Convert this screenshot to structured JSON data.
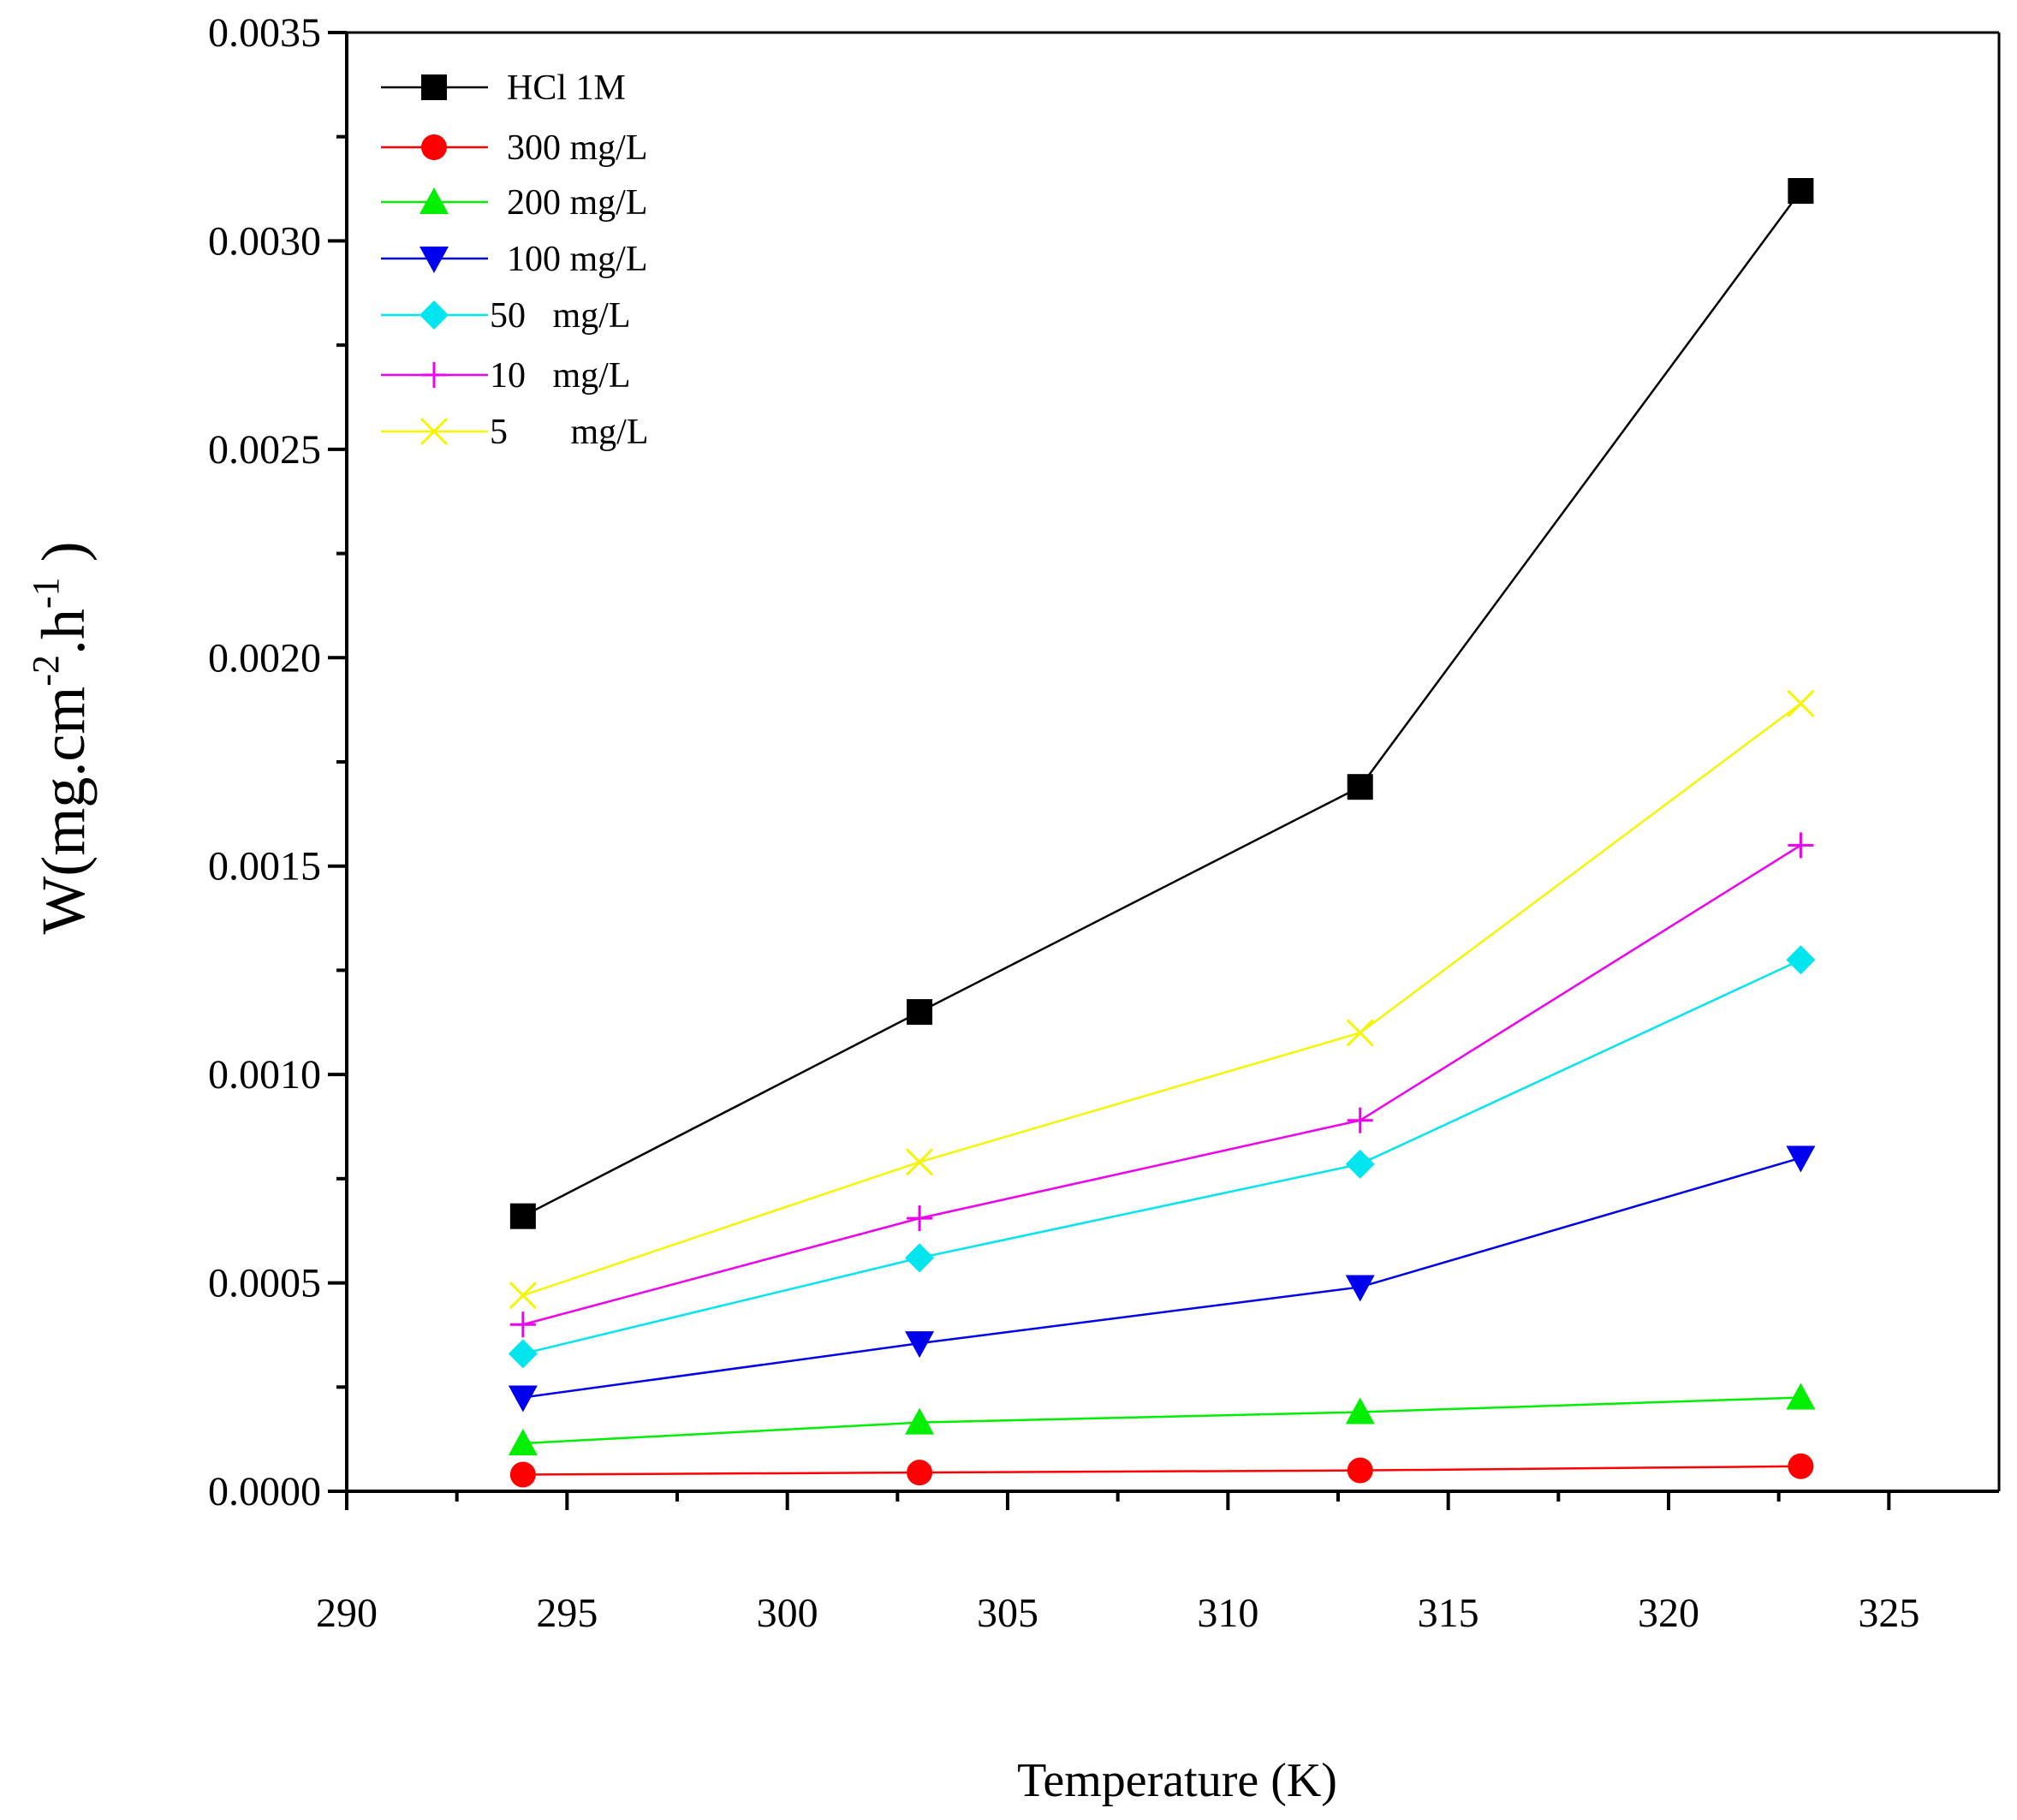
{
  "chart_data": {
    "type": "line",
    "title": "",
    "xlabel": "Temperature (K)",
    "ylabel": {
      "base": "W(mg.cm",
      "exp1": "-2",
      "mid": ".h",
      "exp2": "-1",
      "end": " )"
    },
    "xlim": [
      290,
      327.5
    ],
    "ylim": [
      0,
      0.0035
    ],
    "x_ticks": [
      {
        "value": 290,
        "label": "290"
      },
      {
        "value": 295,
        "label": "295"
      },
      {
        "value": 300,
        "label": "300"
      },
      {
        "value": 305,
        "label": "305"
      },
      {
        "value": 310,
        "label": "310"
      },
      {
        "value": 315,
        "label": "315"
      },
      {
        "value": 320,
        "label": "320"
      },
      {
        "value": 325,
        "label": "325"
      }
    ],
    "y_ticks": [
      {
        "value": 0,
        "label": "0.0000"
      },
      {
        "value": 0.0005,
        "label": "0.0005"
      },
      {
        "value": 0.001,
        "label": "0.0010"
      },
      {
        "value": 0.0015,
        "label": "0.0015"
      },
      {
        "value": 0.002,
        "label": "0.0020"
      },
      {
        "value": 0.0025,
        "label": "0.0025"
      },
      {
        "value": 0.003,
        "label": "0.0030"
      },
      {
        "value": 0.0035,
        "label": "0.0035"
      }
    ],
    "x": [
      294,
      303,
      313,
      323
    ],
    "legend_position": "top-left",
    "series": [
      {
        "name": "HCl 1M",
        "color": "#000000",
        "marker": "square",
        "values": [
          0.00066,
          0.00115,
          0.00169,
          0.00312
        ]
      },
      {
        "name": "300 mg/L",
        "color": "#ff0000",
        "marker": "circle",
        "values": [
          4e-05,
          4.5e-05,
          5e-05,
          6e-05
        ]
      },
      {
        "name": "200 mg/L",
        "color": "#00ee00",
        "marker": "triangle-up",
        "values": [
          0.000115,
          0.000165,
          0.00019,
          0.000225
        ]
      },
      {
        "name": "100 mg/L",
        "color": "#0000ee",
        "marker": "triangle-down",
        "values": [
          0.000225,
          0.000355,
          0.00049,
          0.0008
        ]
      },
      {
        "name": "50   mg/L",
        "color": "#00e5ee",
        "marker": "diamond",
        "values": [
          0.00033,
          0.00056,
          0.000785,
          0.001275
        ]
      },
      {
        "name": "10   mg/L",
        "color": "#ee00ee",
        "marker": "plus",
        "values": [
          0.0004,
          0.000655,
          0.00089,
          0.00155
        ]
      },
      {
        "name": "5       mg/L",
        "color": "#f5f500",
        "marker": "cross",
        "values": [
          0.00047,
          0.00079,
          0.0011,
          0.00189
        ]
      }
    ]
  }
}
